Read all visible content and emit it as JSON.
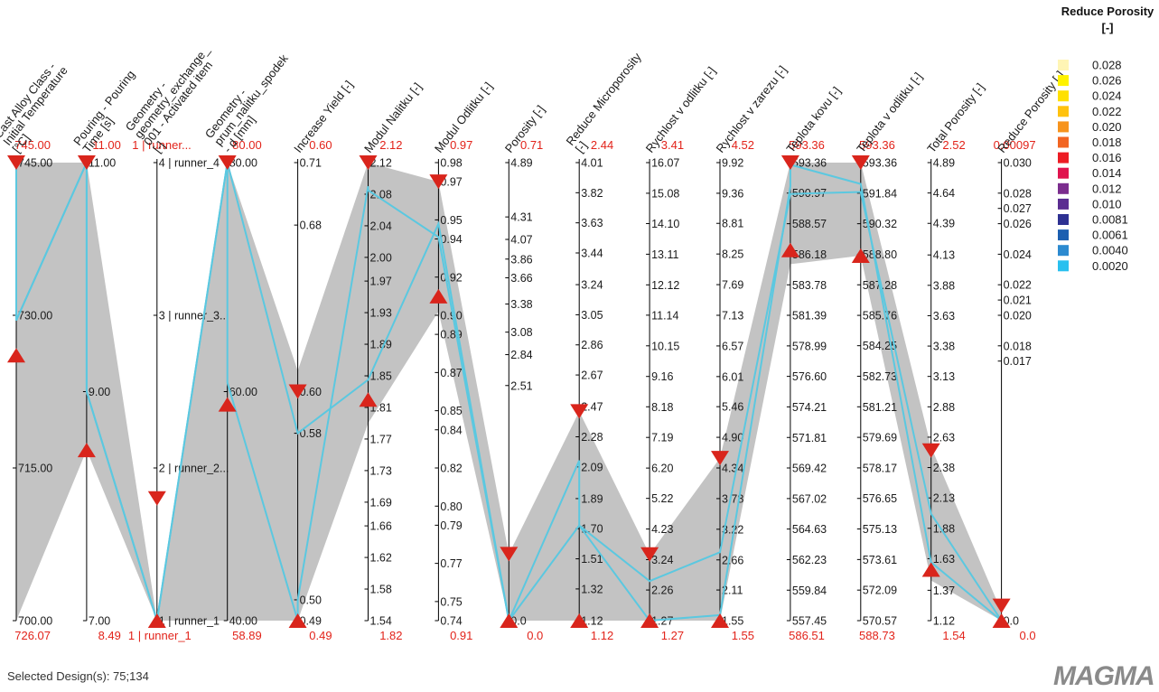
{
  "colors": {
    "band": "#c3c3c3",
    "line": "#5bc8e0",
    "marker": "#d9251c",
    "range_text": "#e2231a",
    "axis": "#000000"
  },
  "footer": {
    "selected": "Selected Design(s): 75;134"
  },
  "logo": {
    "text": "MAGMA"
  },
  "chart_data": {
    "type": "parallel-coordinates",
    "axes": [
      {
        "title": [
          "Cast Alloy Class -",
          "Initial Temperature",
          "[°C]"
        ],
        "ticks": [
          "745.00",
          "730.00",
          "715.00",
          "700.00"
        ],
        "tick_values": [
          745,
          730,
          715,
          700
        ],
        "range": [
          700,
          745
        ],
        "top_value": "745.00",
        "bottom_value": "726.07",
        "filter": [
          726.07,
          745
        ],
        "band": [
          700,
          745
        ],
        "lines": [
          [
            745,
            729.5
          ],
          [
            745,
            729.5
          ]
        ]
      },
      {
        "title": [
          "Pouring - Pouring",
          "Time [s]"
        ],
        "ticks": [
          "11.00",
          "9.00",
          "7.00"
        ],
        "tick_values": [
          11,
          9,
          7
        ],
        "range": [
          7,
          11
        ],
        "top_value": "11.00",
        "bottom_value": "8.49",
        "filter": [
          8.49,
          11
        ],
        "band": [
          8.49,
          11
        ],
        "lines": [
          [
            11,
            9
          ],
          [
            11,
            9
          ]
        ]
      },
      {
        "title": [
          "Geometry -",
          "geometry_exchange_",
          "001 - Activated item",
          "[-]"
        ],
        "ticks": [
          "4 | runner_4",
          "3 | runner_3...",
          "2 | runner_2...",
          "1 | runner_1"
        ],
        "tick_values": [
          4,
          3,
          2,
          1
        ],
        "range": [
          1,
          4
        ],
        "top_value": "1 | runner...",
        "bottom_value": "1 | runner_1",
        "filter": [
          1,
          1.8
        ],
        "band": [
          1,
          1
        ],
        "lines": [
          [
            1,
            1
          ],
          [
            1,
            1
          ]
        ]
      },
      {
        "title": [
          "Geometry -",
          "prum_nalitku_spodek",
          "- d [mm]"
        ],
        "ticks": [
          "80.00",
          "60.00",
          "40.00"
        ],
        "tick_values": [
          80,
          60,
          40
        ],
        "range": [
          40,
          80
        ],
        "top_value": "80.00",
        "bottom_value": "58.89",
        "filter": [
          58.89,
          80
        ],
        "band": [
          40,
          80
        ],
        "lines": [
          [
            80,
            60.8
          ],
          [
            80,
            80
          ]
        ]
      },
      {
        "title": [
          "Increase Yield [-]"
        ],
        "ticks": [
          "0.71",
          "0.68",
          "0.60",
          "0.58",
          "0.50",
          "0.49"
        ],
        "tick_values": [
          0.71,
          0.68,
          0.6,
          0.58,
          0.5,
          0.49
        ],
        "range": [
          0.49,
          0.71
        ],
        "top_value": "0.60",
        "bottom_value": "0.49",
        "filter": [
          0.49,
          0.6
        ],
        "band": [
          0.49,
          0.61
        ],
        "lines": [
          [
            0.49,
            0.5
          ],
          [
            0.58,
            0.58
          ]
        ]
      },
      {
        "title": [
          "Modul Nalitku [-]"
        ],
        "ticks": [
          "2.12",
          "2.08",
          "2.04",
          "2.00",
          "1.97",
          "1.93",
          "1.89",
          "1.85",
          "1.81",
          "1.77",
          "1.73",
          "1.69",
          "1.66",
          "1.62",
          "1.58",
          "1.54"
        ],
        "tick_values": [
          2.12,
          2.08,
          2.04,
          2,
          1.97,
          1.93,
          1.89,
          1.85,
          1.81,
          1.77,
          1.73,
          1.69,
          1.66,
          1.62,
          1.58,
          1.54
        ],
        "range": [
          1.54,
          2.12
        ],
        "top_value": "2.12",
        "bottom_value": "1.82",
        "filter": [
          1.82,
          2.12
        ],
        "band": [
          1.79,
          2.12
        ],
        "lines": [
          [
            2.09,
            2.085
          ],
          [
            1.845,
            1.845
          ]
        ]
      },
      {
        "title": [
          "Modul Odlitku [-]"
        ],
        "ticks": [
          "0.98",
          "0.97",
          "0.95",
          "0.94",
          "0.92",
          "0.90",
          "0.89",
          "0.87",
          "0.85",
          "0.84",
          "0.82",
          "0.80",
          "0.79",
          "0.77",
          "0.75",
          "0.74"
        ],
        "tick_values": [
          0.98,
          0.97,
          0.95,
          0.94,
          0.92,
          0.9,
          0.89,
          0.87,
          0.85,
          0.84,
          0.82,
          0.8,
          0.79,
          0.77,
          0.75,
          0.74
        ],
        "range": [
          0.74,
          0.98
        ],
        "top_value": "0.97",
        "bottom_value": "0.91",
        "filter": [
          0.91,
          0.97
        ],
        "band": [
          0.902,
          0.97
        ],
        "lines": [
          [
            0.941,
            0.941
          ],
          [
            0.948,
            0.948
          ]
        ]
      },
      {
        "title": [
          "Porosity [-]"
        ],
        "ticks": [
          "4.89",
          "4.31",
          "4.07",
          "3.86",
          "3.66",
          "3.38",
          "3.08",
          "2.84",
          "2.51",
          "0.0"
        ],
        "tick_values": [
          4.89,
          4.31,
          4.07,
          3.86,
          3.66,
          3.38,
          3.08,
          2.84,
          2.51,
          0
        ],
        "range": [
          0,
          4.89
        ],
        "top_value": "0.71",
        "bottom_value": "0.0",
        "filter": [
          0,
          0.71
        ],
        "band": [
          0,
          0.71
        ],
        "lines": [
          [
            0,
            0
          ],
          [
            0,
            0
          ]
        ]
      },
      {
        "title": [
          "Reduce Microporosity",
          "[-]"
        ],
        "ticks": [
          "4.01",
          "3.82",
          "3.63",
          "3.44",
          "3.24",
          "3.05",
          "2.86",
          "2.67",
          "2.47",
          "2.28",
          "2.09",
          "1.89",
          "1.70",
          "1.51",
          "1.32",
          "1.12"
        ],
        "tick_values": [
          4.01,
          3.82,
          3.63,
          3.44,
          3.24,
          3.05,
          2.86,
          2.67,
          2.47,
          2.28,
          2.09,
          1.89,
          1.7,
          1.51,
          1.32,
          1.12
        ],
        "range": [
          1.12,
          4.01
        ],
        "top_value": "2.44",
        "bottom_value": "1.12",
        "filter": [
          1.12,
          2.44
        ],
        "band": [
          1.12,
          2.44
        ],
        "lines": [
          [
            2.13,
            1.72
          ],
          [
            1.72,
            1.72
          ]
        ]
      },
      {
        "title": [
          "Rychlost v odlitku [-]"
        ],
        "ticks": [
          "16.07",
          "15.08",
          "14.10",
          "13.11",
          "12.12",
          "11.14",
          "10.15",
          "9.16",
          "8.18",
          "7.19",
          "6.20",
          "5.22",
          "4.23",
          "3.24",
          "2.26",
          "1.27"
        ],
        "tick_values": [
          16.07,
          15.08,
          14.1,
          13.11,
          12.12,
          11.14,
          10.15,
          9.16,
          8.18,
          7.19,
          6.2,
          5.22,
          4.23,
          3.24,
          2.26,
          1.27
        ],
        "range": [
          1.27,
          16.07
        ],
        "top_value": "3.41",
        "bottom_value": "1.27",
        "filter": [
          1.27,
          3.41
        ],
        "band": [
          1.27,
          3.41
        ],
        "lines": [
          [
            1.27,
            1.27
          ],
          [
            2.55,
            2.55
          ]
        ]
      },
      {
        "title": [
          "Rychlost v zarezu [-]"
        ],
        "ticks": [
          "9.92",
          "9.36",
          "8.81",
          "8.25",
          "7.69",
          "7.13",
          "6.57",
          "6.01",
          "5.46",
          "4.90",
          "4.34",
          "3.78",
          "3.22",
          "2.66",
          "2.11",
          "1.55"
        ],
        "tick_values": [
          9.92,
          9.36,
          8.81,
          8.25,
          7.69,
          7.13,
          6.57,
          6.01,
          5.46,
          4.9,
          4.34,
          3.78,
          3.22,
          2.66,
          2.11,
          1.55
        ],
        "range": [
          1.55,
          9.92
        ],
        "top_value": "4.52",
        "bottom_value": "1.55",
        "filter": [
          1.55,
          4.52
        ],
        "band": [
          1.55,
          4.52
        ],
        "lines": [
          [
            1.65,
            1.65
          ],
          [
            2.8,
            2.8
          ]
        ]
      },
      {
        "title": [
          "Teplota kovu [-]"
        ],
        "ticks": [
          "593.36",
          "590.97",
          "588.57",
          "586.18",
          "583.78",
          "581.39",
          "578.99",
          "576.60",
          "574.21",
          "571.81",
          "569.42",
          "567.02",
          "564.63",
          "562.23",
          "559.84",
          "557.45"
        ],
        "tick_values": [
          593.36,
          590.97,
          588.57,
          586.18,
          583.78,
          581.39,
          578.99,
          576.6,
          574.21,
          571.81,
          569.42,
          567.02,
          564.63,
          562.23,
          559.84,
          557.45
        ],
        "range": [
          557.45,
          593.36
        ],
        "top_value": "593.36",
        "bottom_value": "586.51",
        "filter": [
          586.51,
          593.36
        ],
        "band": [
          585.4,
          593.36
        ],
        "lines": [
          [
            591.5,
            593.2
          ],
          [
            590.9,
            590.9
          ]
        ]
      },
      {
        "title": [
          "Teplota v odlitku [-]"
        ],
        "ticks": [
          "593.36",
          "591.84",
          "590.32",
          "588.80",
          "587.28",
          "585.76",
          "584.25",
          "582.73",
          "581.21",
          "579.69",
          "578.17",
          "576.65",
          "575.13",
          "573.61",
          "572.09",
          "570.57"
        ],
        "tick_values": [
          593.36,
          591.84,
          590.32,
          588.8,
          587.28,
          585.76,
          584.25,
          582.73,
          581.21,
          579.69,
          578.17,
          576.65,
          575.13,
          573.61,
          572.09,
          570.57
        ],
        "range": [
          570.57,
          593.36
        ],
        "top_value": "593.36",
        "bottom_value": "588.73",
        "filter": [
          588.73,
          593.36
        ],
        "band": [
          588.73,
          593.36
        ],
        "lines": [
          [
            592.3,
            592.3
          ],
          [
            591.9,
            591.9
          ]
        ]
      },
      {
        "title": [
          "Total Porosity [-]"
        ],
        "ticks": [
          "4.89",
          "4.64",
          "4.39",
          "4.13",
          "3.88",
          "3.63",
          "3.38",
          "3.13",
          "2.88",
          "2.63",
          "2.38",
          "2.13",
          "1.88",
          "1.63",
          "1.37",
          "1.12"
        ],
        "tick_values": [
          4.89,
          4.64,
          4.39,
          4.13,
          3.88,
          3.63,
          3.38,
          3.13,
          2.88,
          2.63,
          2.38,
          2.13,
          1.88,
          1.63,
          1.37,
          1.12
        ],
        "range": [
          1.12,
          4.89
        ],
        "top_value": "2.52",
        "bottom_value": "1.54",
        "filter": [
          1.54,
          2.52
        ],
        "band": [
          1.45,
          2.55
        ],
        "lines": [
          [
            1.6,
            1.6
          ],
          [
            2.0,
            2.0
          ]
        ]
      },
      {
        "title": [
          "Reduce Porosity [-]"
        ],
        "ticks": [
          "0.030",
          "0.028",
          "0.027",
          "0.026",
          "0.024",
          "0.022",
          "0.021",
          "0.020",
          "0.018",
          "0.017",
          "0.0"
        ],
        "tick_values": [
          0.03,
          0.028,
          0.027,
          0.026,
          0.024,
          0.022,
          0.021,
          0.02,
          0.018,
          0.017,
          0
        ],
        "range": [
          0,
          0.03
        ],
        "top_value": "0.00097",
        "bottom_value": "0.0",
        "filter": [
          0,
          0.00097
        ],
        "band": [
          0,
          0.0006
        ],
        "lines": [
          [
            0,
            0
          ],
          [
            0,
            0
          ]
        ]
      }
    ],
    "legend": {
      "title": [
        "Reduce Porosity",
        "[-]"
      ],
      "entries": [
        {
          "label": "0.028",
          "color": "#fff5b5"
        },
        {
          "label": "0.026",
          "color": "#fff200"
        },
        {
          "label": "0.024",
          "color": "#ffe000"
        },
        {
          "label": "0.022",
          "color": "#ffc20e"
        },
        {
          "label": "0.020",
          "color": "#f7941d"
        },
        {
          "label": "0.018",
          "color": "#f26522"
        },
        {
          "label": "0.016",
          "color": "#ed1c24"
        },
        {
          "label": "0.014",
          "color": "#e0134e"
        },
        {
          "label": "0.012",
          "color": "#7b2d8e"
        },
        {
          "label": "0.010",
          "color": "#5b2d91"
        },
        {
          "label": "0.0081",
          "color": "#2e3192"
        },
        {
          "label": "0.0061",
          "color": "#1c5fb0"
        },
        {
          "label": "0.0040",
          "color": "#2c8ad0"
        },
        {
          "label": "0.0020",
          "color": "#29c0ef"
        }
      ]
    }
  }
}
